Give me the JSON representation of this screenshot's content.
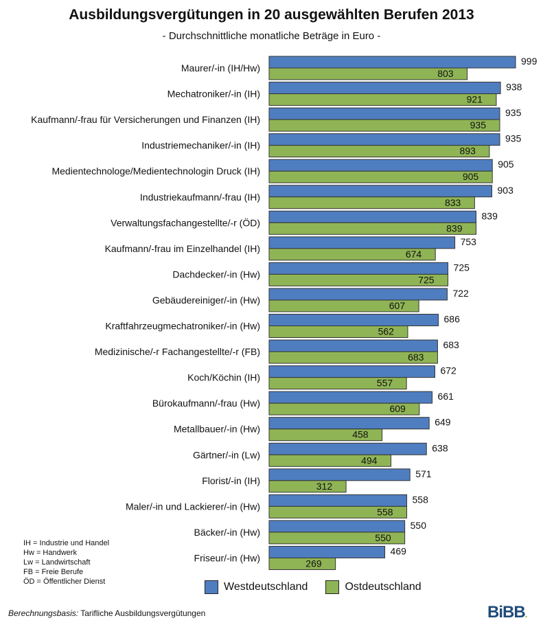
{
  "colors": {
    "west": "#4f7ec0",
    "east": "#8fb455",
    "border": "#333333"
  },
  "chart_data": {
    "type": "bar",
    "orientation": "horizontal",
    "title": "Ausbildungsvergütungen in 20 ausgewählten Berufen 2013",
    "subtitle": "- Durchschnittliche monatliche Beträge in Euro -",
    "categories": [
      "Maurer/-in (IH/Hw)",
      "Mechatroniker/-in (IH)",
      "Kaufmann/-frau für Versicherungen und Finanzen (IH)",
      "Industriemechaniker/-in (IH)",
      "Medientechnologe/Medientechnologin Druck (IH)",
      "Industriekaufmann/-frau (IH)",
      "Verwaltungsfachangestellte/-r (ÖD)",
      "Kaufmann/-frau im Einzelhandel (IH)",
      "Dachdecker/-in (Hw)",
      "Gebäudereiniger/-in (Hw)",
      "Kraftfahrzeugmechatroniker/-in (Hw)",
      "Medizinische/-r Fachangestellte/-r (FB)",
      "Koch/Köchin (IH)",
      "Bürokaufmann/-frau (Hw)",
      "Metallbauer/-in (Hw)",
      "Gärtner/-in (Lw)",
      "Florist/-in (IH)",
      "Maler/-in und Lackierer/-in (Hw)",
      "Bäcker/-in (Hw)",
      "Friseur/-in (Hw)"
    ],
    "series": [
      {
        "name": "Westdeutschland",
        "values": [
          999,
          938,
          935,
          935,
          905,
          903,
          839,
          753,
          725,
          722,
          686,
          683,
          672,
          661,
          649,
          638,
          571,
          558,
          550,
          469
        ]
      },
      {
        "name": "Ostdeutschland",
        "values": [
          803,
          921,
          935,
          893,
          905,
          833,
          839,
          674,
          725,
          607,
          562,
          683,
          557,
          609,
          458,
          494,
          312,
          558,
          550,
          269
        ]
      }
    ],
    "xlim": [
      0,
      999
    ]
  },
  "abbreviations": [
    "IH = Industrie und Handel",
    "Hw = Handwerk",
    "Lw = Landwirtschaft",
    "FB = Freie Berufe",
    "ÖD = Öffentlicher Dienst"
  ],
  "footer": {
    "label": "Berechnungsbasis:",
    "text": " Tarifliche Ausbildungsvergütungen"
  },
  "logo": {
    "text": "BiBB",
    "mark": "."
  }
}
